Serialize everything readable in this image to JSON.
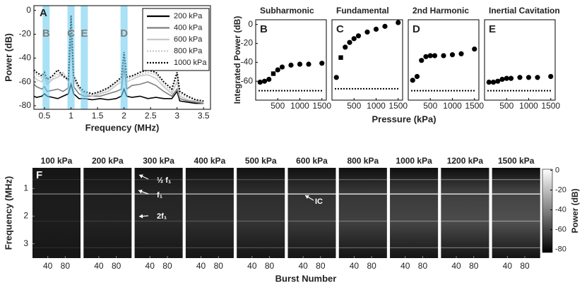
{
  "chart_data": [
    {
      "type": "line",
      "panel": "A",
      "ylabel": "Power (dB)",
      "xlabel": "Frequency (MHz)",
      "xlim": [
        0.3,
        3.63
      ],
      "ylim": [
        -83,
        4
      ],
      "xticks": [
        0.5,
        1,
        1.5,
        2,
        2.5,
        3,
        3.5
      ],
      "yticks": [
        -80,
        -60,
        -40,
        -20,
        0
      ],
      "legend": "upper right",
      "bands": [
        {
          "label": "B",
          "x": 0.53
        },
        {
          "label": "C",
          "x": 1.0
        },
        {
          "label": "E",
          "x": 1.25
        },
        {
          "label": "D",
          "x": 2.0
        }
      ],
      "x": [
        0.3,
        0.35,
        0.45,
        0.5,
        0.55,
        0.65,
        0.75,
        0.85,
        0.95,
        1.0,
        1.05,
        1.15,
        1.25,
        1.4,
        1.55,
        1.7,
        1.85,
        1.95,
        2.0,
        2.05,
        2.15,
        2.3,
        2.45,
        2.6,
        2.75,
        2.9,
        3.0,
        3.05,
        3.2,
        3.35,
        3.5
      ],
      "series": [
        {
          "name": "200 kPa",
          "color": "#000000",
          "style": "solid",
          "values": [
            -72,
            -73,
            -72,
            -70,
            -72,
            -73,
            -74,
            -72,
            -70,
            -62,
            -70,
            -74,
            -74,
            -75,
            -74,
            -75,
            -74,
            -72,
            -66,
            -72,
            -73,
            -72,
            -74,
            -73,
            -74,
            -74,
            -68,
            -76,
            -77,
            -78,
            -78
          ]
        },
        {
          "name": "400 kPa",
          "color": "#7f7f7f",
          "style": "solid",
          "values": [
            -62,
            -64,
            -66,
            -64,
            -68,
            -67,
            -66,
            -68,
            -65,
            -20,
            -64,
            -70,
            -72,
            -72,
            -72,
            -70,
            -68,
            -66,
            -48,
            -66,
            -63,
            -62,
            -60,
            -63,
            -68,
            -72,
            -66,
            -74,
            -76,
            -77,
            -78
          ]
        },
        {
          "name": "600 kPa",
          "color": "#c8c8c8",
          "style": "solid",
          "values": [
            -55,
            -58,
            -60,
            -55,
            -62,
            -58,
            -56,
            -52,
            -60,
            -10,
            -58,
            -66,
            -70,
            -72,
            -70,
            -68,
            -63,
            -60,
            -42,
            -60,
            -58,
            -55,
            -54,
            -57,
            -64,
            -70,
            -60,
            -72,
            -75,
            -76,
            -77
          ]
        },
        {
          "name": "800 kPa",
          "color": "#c8c8c8",
          "style": "dotted",
          "values": [
            -52,
            -54,
            -57,
            -54,
            -60,
            -57,
            -53,
            -56,
            -59,
            -6,
            -57,
            -65,
            -69,
            -71,
            -69,
            -66,
            -61,
            -58,
            -38,
            -58,
            -56,
            -54,
            -52,
            -54,
            -62,
            -68,
            -55,
            -70,
            -73,
            -75,
            -77
          ]
        },
        {
          "name": "1000 kPa",
          "color": "#000000",
          "style": "dotted",
          "values": [
            -50,
            -52,
            -55,
            -52,
            -58,
            -55,
            -50,
            -55,
            -58,
            -4,
            -55,
            -64,
            -68,
            -70,
            -68,
            -65,
            -60,
            -56,
            -35,
            -56,
            -55,
            -52,
            -50,
            -52,
            -60,
            -66,
            -52,
            -68,
            -72,
            -75,
            -76
          ]
        }
      ]
    },
    {
      "type": "scatter",
      "panel": "B",
      "title": "Subharmonic",
      "ylabel": "Integrated Power (dB)",
      "xlabel": "Pressure (kPa)",
      "xlim": [
        0,
        1600
      ],
      "ylim": [
        -80,
        5
      ],
      "xticks": [
        500,
        1000,
        1500
      ],
      "yticks": [
        -60,
        -40,
        -20,
        0
      ],
      "floor": -70,
      "x": [
        100,
        200,
        300,
        400,
        500,
        600,
        800,
        1000,
        1200,
        1500
      ],
      "values": [
        -61,
        -60,
        -58,
        -52,
        -48,
        -45,
        -43,
        -42,
        -42,
        -41
      ],
      "markers": [
        "circle",
        "circle",
        "circle",
        "square",
        "circle",
        "circle",
        "circle",
        "circle",
        "circle",
        "circle"
      ]
    },
    {
      "type": "scatter",
      "panel": "C",
      "title": "Fundamental",
      "xlim": [
        0,
        1600
      ],
      "ylim": [
        -80,
        5
      ],
      "xticks": [
        500,
        1000,
        1500
      ],
      "floor": -68,
      "x": [
        100,
        200,
        300,
        400,
        500,
        600,
        800,
        1000,
        1200,
        1500
      ],
      "values": [
        -56,
        -35,
        -24,
        -19,
        -15,
        -12,
        -8,
        -5,
        -2,
        2
      ],
      "markers": [
        "circle",
        "square",
        "circle",
        "circle",
        "circle",
        "circle",
        "circle",
        "circle",
        "circle",
        "circle"
      ]
    },
    {
      "type": "scatter",
      "panel": "D",
      "title": "2nd Harmonic",
      "xlim": [
        0,
        1600
      ],
      "ylim": [
        -80,
        5
      ],
      "xticks": [
        500,
        1000,
        1500
      ],
      "floor": -70,
      "x": [
        100,
        200,
        300,
        400,
        500,
        600,
        800,
        1000,
        1200,
        1500
      ],
      "values": [
        -59,
        -55,
        -38,
        -34,
        -33,
        -33,
        -33,
        -32,
        -31,
        -26
      ],
      "markers": [
        "circle",
        "circle",
        "circle",
        "circle",
        "circle",
        "circle",
        "circle",
        "circle",
        "circle",
        "circle"
      ]
    },
    {
      "type": "scatter",
      "panel": "E",
      "title": "Inertial Cavitation",
      "xlim": [
        0,
        1600
      ],
      "ylim": [
        -80,
        5
      ],
      "xticks": [
        500,
        1000,
        1500
      ],
      "floor": -70,
      "x": [
        100,
        200,
        300,
        400,
        500,
        600,
        800,
        1000,
        1200,
        1500
      ],
      "values": [
        -61,
        -61,
        -60,
        -58,
        -57,
        -57,
        -56,
        -56,
        -56,
        -55
      ],
      "markers": [
        "circle",
        "circle",
        "circle",
        "circle",
        "circle",
        "circle",
        "circle",
        "circle",
        "circle",
        "circle"
      ]
    },
    {
      "type": "heatmap",
      "panel": "F",
      "ylabel": "Frequency (MHz)",
      "xlabel": "Burst Number",
      "titles": [
        "100 kPa",
        "200 kPa",
        "300 kPa",
        "400 kPa",
        "500 kPa",
        "600 kPa",
        "800 kPa",
        "1000 kPa",
        "1200 kPa",
        "1500 kPa"
      ],
      "ylim": [
        0.25,
        3.52
      ],
      "yticks": [
        1,
        2,
        3
      ],
      "xlim": [
        5,
        115
      ],
      "xticks": [
        40,
        80
      ],
      "annotations": [
        "½ f₁",
        "f₁",
        "2f₁",
        "IC"
      ],
      "colorbar": {
        "label": "Power (dB)",
        "lim": [
          -83,
          1
        ],
        "ticks": [
          0,
          -20,
          -40,
          -60,
          -80
        ]
      }
    }
  ]
}
